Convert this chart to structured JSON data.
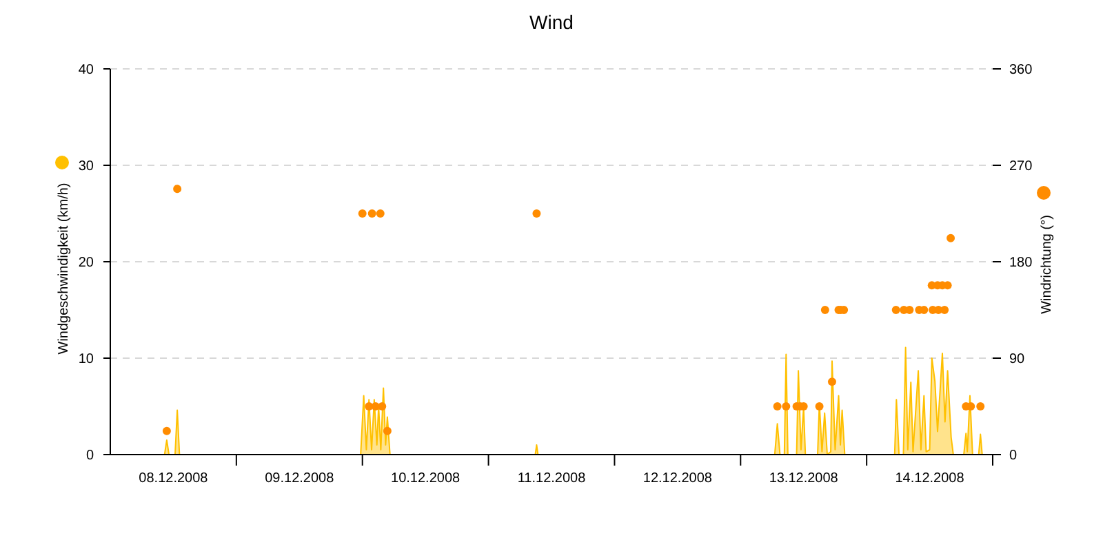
{
  "chart_data": {
    "type": "area",
    "title": "Wind",
    "ylabel": "Windgeschwindigkeit (km/h)",
    "y2label": "Windrichtung (°)",
    "xlim": [
      "2008-12-08T00:00",
      "2008-12-15T00:00"
    ],
    "xticks": [
      {
        "value": "2008-12-08T12:00",
        "label": "08.12.2008"
      },
      {
        "value": "2008-12-09T00:00",
        "label": null
      },
      {
        "value": "2008-12-09T12:00",
        "label": "09.12.2008"
      },
      {
        "value": "2008-12-10T00:00",
        "label": null
      },
      {
        "value": "2008-12-10T12:00",
        "label": "10.12.2008"
      },
      {
        "value": "2008-12-11T00:00",
        "label": null
      },
      {
        "value": "2008-12-11T12:00",
        "label": "11.12.2008"
      },
      {
        "value": "2008-12-12T00:00",
        "label": null
      },
      {
        "value": "2008-12-12T12:00",
        "label": "12.12.2008"
      },
      {
        "value": "2008-12-13T00:00",
        "label": null
      },
      {
        "value": "2008-12-13T12:00",
        "label": "13.12.2008"
      },
      {
        "value": "2008-12-14T00:00",
        "label": null
      },
      {
        "value": "2008-12-14T12:00",
        "label": "14.12.2008"
      },
      {
        "value": "2008-12-15T00:00",
        "label": null
      }
    ],
    "ylim": [
      0,
      40
    ],
    "yticks": [
      0,
      10,
      20,
      30,
      40
    ],
    "y2lim": [
      0,
      360
    ],
    "y2ticks": [
      0,
      90,
      180,
      270,
      360
    ],
    "grid": "y",
    "series": [
      {
        "axis": "y",
        "color": "#ffc000",
        "x": [
          "2008-12-08T10:20",
          "2008-12-08T10:45",
          "2008-12-08T11:10",
          "2008-12-08T12:20",
          "2008-12-08T12:45",
          "2008-12-08T13:10",
          "2008-12-09T23:40",
          "2008-12-10T00:15",
          "2008-12-10T00:45",
          "2008-12-10T01:15",
          "2008-12-10T01:45",
          "2008-12-10T02:15",
          "2008-12-10T02:45",
          "2008-12-10T03:05",
          "2008-12-10T03:30",
          "2008-12-10T04:00",
          "2008-12-10T04:25",
          "2008-12-10T04:45",
          "2008-12-10T05:15",
          "2008-12-11T08:55",
          "2008-12-11T09:10",
          "2008-12-11T09:25",
          "2008-12-13T06:30",
          "2008-12-13T07:00",
          "2008-12-13T07:30",
          "2008-12-13T08:20",
          "2008-12-13T08:40",
          "2008-12-13T09:00",
          "2008-12-13T10:40",
          "2008-12-13T11:00",
          "2008-12-13T11:30",
          "2008-12-13T12:00",
          "2008-12-13T12:20",
          "2008-12-13T14:40",
          "2008-12-13T15:00",
          "2008-12-13T15:30",
          "2008-12-13T16:00",
          "2008-12-13T16:30",
          "2008-12-13T17:10",
          "2008-12-13T17:25",
          "2008-12-13T18:00",
          "2008-12-13T18:40",
          "2008-12-13T19:00",
          "2008-12-13T19:20",
          "2008-12-13T19:50",
          "2008-12-14T05:20",
          "2008-12-14T05:40",
          "2008-12-14T06:10",
          "2008-12-14T07:00",
          "2008-12-14T07:25",
          "2008-12-14T07:50",
          "2008-12-14T08:25",
          "2008-12-14T08:50",
          "2008-12-14T09:50",
          "2008-12-14T10:20",
          "2008-12-14T10:55",
          "2008-12-14T11:20",
          "2008-12-14T12:00",
          "2008-12-14T12:25",
          "2008-12-14T13:00",
          "2008-12-14T13:30",
          "2008-12-14T14:25",
          "2008-12-14T14:55",
          "2008-12-14T15:25",
          "2008-12-14T16:05",
          "2008-12-14T16:30",
          "2008-12-14T18:30",
          "2008-12-14T18:55",
          "2008-12-14T19:10",
          "2008-12-14T19:40",
          "2008-12-14T20:10",
          "2008-12-14T21:20",
          "2008-12-14T21:40",
          "2008-12-14T22:00"
        ],
        "values": [
          0,
          1.5,
          0,
          0,
          4.6,
          0,
          0,
          6.1,
          0.5,
          5.7,
          0.5,
          5.7,
          1,
          5,
          0.5,
          6.9,
          1,
          3.9,
          0,
          0,
          1,
          0,
          0,
          3.2,
          0,
          0,
          10.4,
          0,
          0,
          8.7,
          0.5,
          4.9,
          0,
          0,
          5.3,
          0.3,
          4.3,
          0,
          0.3,
          9.7,
          0.5,
          6.1,
          1,
          4.6,
          0,
          0,
          5.7,
          0,
          0,
          11.1,
          0.5,
          7.5,
          0.3,
          8.7,
          0.5,
          6.1,
          0.3,
          0.5,
          10,
          7.6,
          2.4,
          10.5,
          3.4,
          8.7,
          1.8,
          0,
          0,
          2.2,
          0.3,
          6.1,
          0,
          0,
          2.1,
          0
        ]
      },
      {
        "type": "scatter",
        "axis": "y2",
        "color": "#ff8c00",
        "marker": "circle",
        "x": [
          "2008-12-08T10:45",
          "2008-12-08T12:45",
          "2008-12-10T00:00",
          "2008-12-10T01:15",
          "2008-12-10T01:50",
          "2008-12-10T02:30",
          "2008-12-10T03:25",
          "2008-12-10T03:45",
          "2008-12-10T04:45",
          "2008-12-11T09:10",
          "2008-12-13T07:00",
          "2008-12-13T08:40",
          "2008-12-13T10:40",
          "2008-12-13T11:20",
          "2008-12-13T12:00",
          "2008-12-13T15:00",
          "2008-12-13T16:05",
          "2008-12-13T17:25",
          "2008-12-13T18:40",
          "2008-12-13T19:05",
          "2008-12-13T19:40",
          "2008-12-14T05:35",
          "2008-12-14T07:05",
          "2008-12-14T08:10",
          "2008-12-14T10:00",
          "2008-12-14T10:55",
          "2008-12-14T12:25",
          "2008-12-14T12:35",
          "2008-12-14T13:30",
          "2008-12-14T13:40",
          "2008-12-14T14:25",
          "2008-12-14T14:50",
          "2008-12-14T15:25",
          "2008-12-14T16:00",
          "2008-12-14T18:55",
          "2008-12-14T19:50",
          "2008-12-14T21:40"
        ],
        "values": [
          22,
          248,
          225,
          45,
          225,
          45,
          225,
          45,
          22,
          225,
          45,
          45,
          45,
          45,
          45,
          45,
          135,
          68,
          135,
          135,
          135,
          135,
          135,
          135,
          135,
          135,
          158,
          135,
          158,
          135,
          158,
          135,
          158,
          202,
          45,
          45,
          45
        ]
      }
    ]
  }
}
